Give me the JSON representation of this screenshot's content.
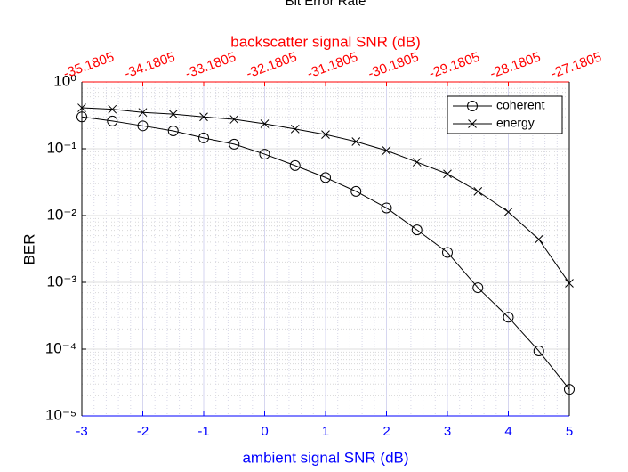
{
  "chart_data": {
    "type": "line",
    "title": "Bit Error Rate",
    "xlabel": "ambient signal SNR (dB)",
    "ylabel": "BER",
    "x2label": "backscatter signal SNR (dB)",
    "x": [
      -3,
      -2.5,
      -2,
      -1.5,
      -1,
      -0.5,
      0,
      0.5,
      1,
      1.5,
      2,
      2.5,
      3,
      3.5,
      4,
      4.5,
      5
    ],
    "series": [
      {
        "name": "coherent",
        "color": "#000000",
        "marker": "circle",
        "values": [
          0.3,
          0.26,
          0.22,
          0.185,
          0.145,
          0.117,
          0.083,
          0.056,
          0.037,
          0.023,
          0.013,
          0.0061,
          0.0028,
          0.00083,
          0.0003,
          9.4e-05,
          2.5e-05
        ]
      },
      {
        "name": "energy",
        "color": "#000000",
        "marker": "x",
        "values": [
          0.41,
          0.39,
          0.35,
          0.33,
          0.3,
          0.275,
          0.236,
          0.197,
          0.163,
          0.128,
          0.094,
          0.063,
          0.042,
          0.023,
          0.0113,
          0.0044,
          0.00097
        ]
      }
    ],
    "xlim": [
      -3,
      5
    ],
    "xticks": [
      -3,
      -2,
      -1,
      0,
      1,
      2,
      3,
      4,
      5
    ],
    "x2lim": [
      -35.1805,
      -27.1805
    ],
    "x2ticks": [
      -35.1805,
      -34.1805,
      -33.1805,
      -32.1805,
      -31.1805,
      -30.1805,
      -29.1805,
      -28.1805,
      -27.1805
    ],
    "ylim": [
      1e-05,
      1
    ],
    "yscale": "log",
    "yticks": [
      {
        "value": 1e-05,
        "label": "10⁻⁵"
      },
      {
        "value": 0.0001,
        "label": "10⁻⁴"
      },
      {
        "value": 0.001,
        "label": "10⁻³"
      },
      {
        "value": 0.01,
        "label": "10⁻²"
      },
      {
        "value": 0.1,
        "label": "10⁻¹"
      },
      {
        "value": 1,
        "label": "10⁰"
      }
    ],
    "grid": true,
    "minor_grid": true,
    "legend": "top-right",
    "xaxis_color": "#0000ff",
    "x2axis_color": "#ff0000"
  }
}
